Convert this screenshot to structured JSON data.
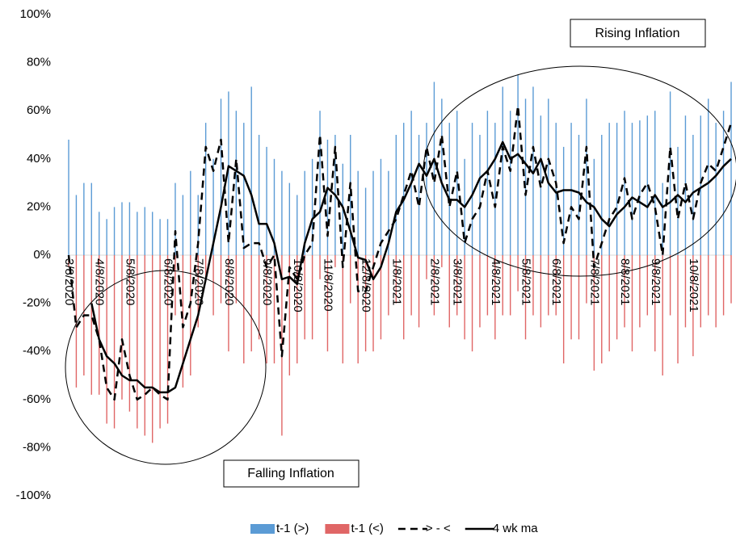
{
  "chart_data": {
    "type": "bar-line",
    "categories": [
      "3/8/2020",
      null,
      null,
      null,
      "4/8/2020",
      null,
      null,
      null,
      "5/8/2020",
      null,
      null,
      null,
      null,
      "6/8/2020",
      null,
      null,
      null,
      "7/8/2020",
      null,
      null,
      null,
      "8/8/2020",
      null,
      null,
      null,
      null,
      "9/8/2020",
      null,
      null,
      null,
      "10/8/2020",
      null,
      null,
      null,
      "11/8/2020",
      null,
      null,
      null,
      null,
      "12/8/2020",
      null,
      null,
      null,
      "1/8/2021",
      null,
      null,
      null,
      null,
      "2/8/2021",
      null,
      null,
      "3/8/2021",
      null,
      null,
      null,
      null,
      "4/8/2021",
      null,
      null,
      null,
      "5/8/2021",
      null,
      null,
      null,
      "6/8/2021",
      null,
      null,
      null,
      null,
      "7/8/2021",
      null,
      null,
      null,
      "8/8/2021",
      null,
      null,
      null,
      "9/8/2021",
      null,
      null,
      null,
      null,
      "10/8/2021",
      null,
      null,
      null,
      null,
      null
    ],
    "series": [
      {
        "name": "t-1 (>)",
        "kind": "bar",
        "color": "#5b9bd5",
        "values": [
          48,
          25,
          30,
          30,
          18,
          15,
          20,
          22,
          22,
          18,
          20,
          18,
          15,
          15,
          30,
          25,
          35,
          25,
          55,
          40,
          65,
          68,
          60,
          55,
          70,
          50,
          45,
          40,
          35,
          30,
          25,
          35,
          40,
          60,
          48,
          50,
          38,
          50,
          35,
          28,
          35,
          40,
          35,
          50,
          55,
          60,
          50,
          55,
          72,
          65,
          55,
          60,
          40,
          55,
          50,
          60,
          55,
          70,
          60,
          75,
          65,
          70,
          58,
          65,
          55,
          45,
          55,
          50,
          65,
          40,
          50,
          55,
          55,
          60,
          55,
          56,
          58,
          60,
          30,
          68,
          45,
          58,
          50,
          58,
          65,
          55,
          60,
          72
        ]
      },
      {
        "name": "t-1 (<)",
        "kind": "bar",
        "color": "#e06666",
        "values": [
          -5,
          -55,
          -50,
          -58,
          -58,
          -70,
          -72,
          -60,
          -65,
          -72,
          -75,
          -78,
          -72,
          -70,
          -25,
          -55,
          -50,
          -30,
          -10,
          -25,
          -20,
          -40,
          -20,
          -45,
          -40,
          -35,
          -45,
          -45,
          -75,
          -50,
          -45,
          -35,
          -35,
          -10,
          -40,
          -5,
          -45,
          -20,
          -45,
          -40,
          -40,
          -35,
          -25,
          -20,
          -35,
          -25,
          -30,
          -10,
          -25,
          -5,
          -30,
          -25,
          -35,
          -40,
          -30,
          -25,
          -35,
          -25,
          -25,
          -15,
          -35,
          -25,
          -30,
          -25,
          -25,
          -45,
          -35,
          -35,
          -20,
          -48,
          -45,
          -40,
          -35,
          -30,
          -40,
          -30,
          -25,
          -40,
          -50,
          -25,
          -45,
          -30,
          -42,
          -30,
          -25,
          -30,
          -25,
          -20
        ]
      },
      {
        "name": "> - <",
        "kind": "line",
        "dash": true,
        "color": "#000000",
        "values": [
          0,
          -30,
          -25,
          -25,
          -35,
          -55,
          -60,
          -35,
          -50,
          -60,
          -58,
          -55,
          -58,
          -60,
          10,
          -30,
          -20,
          5,
          45,
          35,
          48,
          5,
          40,
          3,
          5,
          5,
          -5,
          0,
          -42,
          -5,
          -10,
          0,
          5,
          50,
          8,
          45,
          -5,
          30,
          -15,
          -15,
          -5,
          5,
          10,
          15,
          25,
          35,
          20,
          45,
          30,
          50,
          20,
          35,
          5,
          15,
          20,
          35,
          20,
          45,
          35,
          62,
          25,
          45,
          28,
          40,
          30,
          5,
          20,
          15,
          45,
          -5,
          5,
          15,
          20,
          32,
          15,
          25,
          30,
          20,
          0,
          45,
          15,
          30,
          15,
          30,
          38,
          35,
          45,
          55
        ]
      },
      {
        "name": "4 wk ma",
        "kind": "line",
        "dash": false,
        "color": "#000000",
        "values": [
          null,
          null,
          null,
          -20,
          -35,
          -42,
          -45,
          -50,
          -52,
          -52,
          -55,
          -55,
          -57,
          -57,
          -55,
          -45,
          -35,
          -25,
          -10,
          5,
          20,
          37,
          35,
          33,
          25,
          13,
          13,
          5,
          -10,
          -9,
          -12,
          5,
          15,
          18,
          28,
          25,
          20,
          10,
          -1,
          -2,
          -10,
          -5,
          5,
          18,
          23,
          30,
          38,
          33,
          40,
          30,
          23,
          23,
          20,
          25,
          32,
          35,
          40,
          47,
          40,
          42,
          38,
          34,
          40,
          30,
          26,
          27,
          27,
          26,
          22,
          20,
          15,
          12,
          17,
          20,
          24,
          22,
          20,
          25,
          20,
          22,
          25,
          22,
          26,
          28,
          30,
          33,
          37,
          40
        ]
      }
    ],
    "ylim": [
      -100,
      100
    ],
    "yticks": [
      {
        "value": -100,
        "label": "-100%"
      },
      {
        "value": -80,
        "label": "-80%"
      },
      {
        "value": -60,
        "label": "-60%"
      },
      {
        "value": -40,
        "label": "-40%"
      },
      {
        "value": -20,
        "label": "-20%"
      },
      {
        "value": 0,
        "label": "0%"
      },
      {
        "value": 20,
        "label": "20%"
      },
      {
        "value": 40,
        "label": "40%"
      },
      {
        "value": 60,
        "label": "60%"
      },
      {
        "value": 80,
        "label": "80%"
      },
      {
        "value": 100,
        "label": "100%"
      }
    ],
    "annotations": [
      "Rising Inflation",
      "Falling Inflation"
    ],
    "legend": "bottom"
  }
}
